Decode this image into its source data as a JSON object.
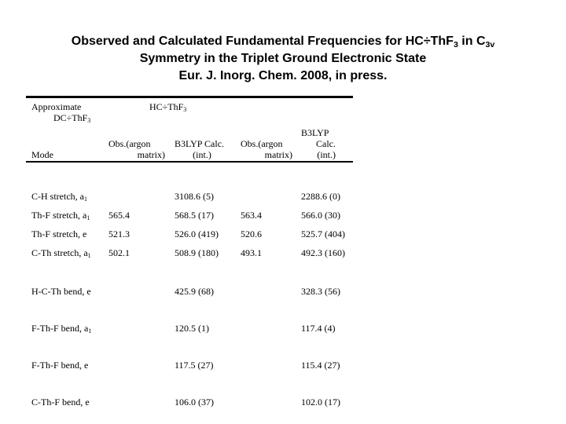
{
  "colors": {
    "background": "#ffffff",
    "text": "#000000",
    "rule": "#000000"
  },
  "slide": {
    "title": {
      "line1_segments": [
        "Observed and Calculated Fundamental Frequencies for HC÷ThF",
        {
          "sub": "3"
        },
        " in C",
        {
          "sub": "3v"
        }
      ],
      "line2": "Symmetry in the Triplet Ground Electronic State",
      "line3": "Eur. J. Inorg. Chem. 2008, in press."
    },
    "table": {
      "group_header": {
        "col1_line1": "Approximate",
        "col1_line2_segments": [
          "DC÷ThF",
          {
            "sub": "3"
          }
        ],
        "span_header_segments": [
          "HC÷ThF",
          {
            "sub": "3"
          }
        ]
      },
      "column_headers": {
        "mode": "Mode",
        "obs1_lines": [
          "Obs.(argon",
          "matrix)"
        ],
        "calc1_lines": [
          "B3LYP Calc.",
          "(int.)"
        ],
        "obs2_lines": [
          "Obs.(argon",
          "matrix)"
        ],
        "calc2_lines": [
          "B3LYP",
          "Calc.",
          "(int.)"
        ]
      },
      "rows": [
        {
          "mode": [
            "C-H stretch, a",
            {
              "sub": "1"
            }
          ],
          "obs1": "",
          "calc1": "3108.6 (5)",
          "obs2": "",
          "calc2": "2288.6 (0)"
        },
        {
          "mode": [
            "Th-F stretch, a",
            {
              "sub": "1"
            }
          ],
          "obs1": "565.4",
          "calc1": "568.5 (17)",
          "obs2": "563.4",
          "calc2": "566.0 (30)"
        },
        {
          "mode": [
            "Th-F stretch, e"
          ],
          "obs1": "521.3",
          "calc1": "526.0 (419)",
          "obs2": "520.6",
          "calc2": "525.7 (404)"
        },
        {
          "mode": [
            "C-Th stretch, a",
            {
              "sub": "1"
            }
          ],
          "obs1": "502.1",
          "calc1": "508.9 (180)",
          "obs2": "493.1",
          "calc2": "492.3 (160)"
        },
        {
          "mode": [
            "H-C-Th bend, e"
          ],
          "obs1": "",
          "calc1": "425.9 (68)",
          "obs2": "",
          "calc2": "328.3 (56)"
        },
        {
          "mode": [
            "F-Th-F bend, a",
            {
              "sub": "1"
            }
          ],
          "obs1": "",
          "calc1": "120.5 (1)",
          "obs2": "",
          "calc2": "117.4 (4)"
        },
        {
          "mode": [
            "F-Th-F bend, e"
          ],
          "obs1": "",
          "calc1": "117.5 (27)",
          "obs2": "",
          "calc2": "115.4 (27)"
        },
        {
          "mode": [
            "C-Th-F bend, e"
          ],
          "obs1": "",
          "calc1": "106.0 (37)",
          "obs2": "",
          "calc2": "102.0 (17)"
        }
      ]
    }
  }
}
